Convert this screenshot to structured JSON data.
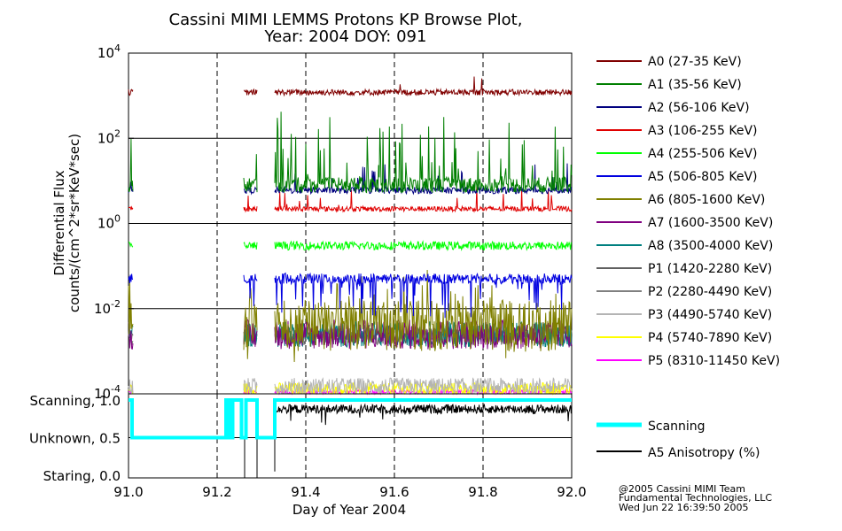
{
  "title": {
    "line1": "Cassini MIMI LEMMS Protons KP Browse Plot,",
    "line2": "Year: 2004 DOY: 091"
  },
  "colors": {
    "A0": "#800000",
    "A1": "#007f00",
    "A2": "#00007f",
    "A3": "#e00000",
    "A4": "#00ff00",
    "A5": "#0000e0",
    "A6": "#808000",
    "A7": "#800080",
    "A8": "#008080",
    "P1": "#606060",
    "P2": "#808080",
    "P3": "#b4b4b4",
    "P4": "#ffff00",
    "P5": "#ff00ff",
    "scanning": "#00ffff",
    "anisotropy": "#000000"
  },
  "chart_data": [
    {
      "type": "line",
      "panel": "flux",
      "ylabel_line1": "Differential Flux",
      "ylabel_line2": "counts/(cm^2*sr*KeV*sec)",
      "yscale": "log",
      "ylim": [
        0.0001,
        10000
      ],
      "xlim": [
        91.0,
        92.0
      ],
      "yticks": [
        {
          "base": "10",
          "exp": "4",
          "value": 10000
        },
        {
          "base": "10",
          "exp": "2",
          "value": 100
        },
        {
          "base": "10",
          "exp": "0",
          "value": 1
        },
        {
          "base": "10",
          "exp": "-2",
          "value": 0.01
        },
        {
          "base": "10",
          "exp": "-4",
          "value": 0.0001
        }
      ],
      "data_gaps": [
        [
          91.01,
          91.26
        ],
        [
          91.29,
          91.33
        ]
      ],
      "series": [
        {
          "name": "A0 (27-35 KeV)",
          "key": "A0",
          "typical": 1200,
          "spread": 0.07,
          "spike_prob": 0.02,
          "spike_max": 2.0
        },
        {
          "name": "A1 (35-56 KeV)",
          "key": "A1",
          "typical": 8,
          "spread": 0.18,
          "spike_prob": 0.13,
          "spike_max": 40
        },
        {
          "name": "A2 (56-106 KeV)",
          "key": "A2",
          "typical": 6,
          "spread": 0.08,
          "spike_prob": 0.05,
          "spike_max": 3
        },
        {
          "name": "A3 (106-255 KeV)",
          "key": "A3",
          "typical": 2.2,
          "spread": 0.06,
          "spike_prob": 0.03,
          "spike_max": 2
        },
        {
          "name": "A4 (255-506 KeV)",
          "key": "A4",
          "typical": 0.3,
          "spread": 0.1,
          "spike_prob": 0.0,
          "spike_max": 1
        },
        {
          "name": "A5 (506-805 KeV)",
          "key": "A5",
          "typical": 0.05,
          "spread": 0.12,
          "spike_prob": 0.12,
          "spike_max": 0.05
        },
        {
          "name": "A6 (805-1600 KeV)",
          "key": "A6",
          "typical": 0.004,
          "spread": 0.6,
          "spike_prob": 0.0,
          "spike_max": 1
        },
        {
          "name": "A7 (1600-3500 KeV)",
          "key": "A7",
          "typical": 0.0025,
          "spread": 0.35,
          "spike_prob": 0.0,
          "spike_max": 1
        },
        {
          "name": "A8 (3500-4000 KeV)",
          "key": "A8",
          "typical": 0.0025,
          "spread": 0.3,
          "spike_prob": 0.0,
          "spike_max": 1
        },
        {
          "name": "P1 (1420-2280 KeV)",
          "key": "P1",
          "typical": 0.0022,
          "spread": 0.2,
          "spike_prob": 0.0,
          "spike_max": 1
        },
        {
          "name": "P2 (2280-4490 KeV)",
          "key": "P2",
          "typical": 0.0025,
          "spread": 0.15,
          "spike_prob": 0.0,
          "spike_max": 1
        },
        {
          "name": "P3 (4490-5740 KeV)",
          "key": "P3",
          "typical": 0.00015,
          "spread": 0.2,
          "spike_prob": 0.0,
          "spike_max": 1
        },
        {
          "name": "P4 (5740-7890 KeV)",
          "key": "P4",
          "typical": 0.00013,
          "spread": 0.15,
          "spike_prob": 0.0,
          "spike_max": 1
        },
        {
          "name": "P5 (8310-11450 KeV)",
          "key": "P5",
          "typical": 0.00011,
          "spread": 0.05,
          "spike_prob": 0.0,
          "spike_max": 1
        }
      ]
    },
    {
      "type": "line",
      "panel": "status",
      "ylim": [
        0.0,
        1.0
      ],
      "yticks": [
        {
          "label": "Scanning, 1.0",
          "value": 1.0
        },
        {
          "label": "Unknown, 0.5",
          "value": 0.5
        },
        {
          "label": "Staring, 0.0",
          "value": 0.0
        }
      ],
      "xlabel": "Day of Year 2004",
      "xticks": [
        "91.0",
        "91.2",
        "91.4",
        "91.6",
        "91.8",
        "92.0"
      ],
      "xtick_values": [
        91.0,
        91.2,
        91.4,
        91.6,
        91.8,
        92.0
      ],
      "vlines": [
        91.2,
        91.4,
        91.6,
        91.8
      ],
      "series": [
        {
          "name": "Scanning",
          "key": "scanning",
          "x": [
            91.0,
            91.008,
            91.008,
            91.22,
            91.22,
            91.228,
            91.228,
            91.235,
            91.235,
            91.255,
            91.255,
            91.265,
            91.265,
            91.29,
            91.29,
            91.33,
            91.33,
            92.0
          ],
          "y": [
            1.0,
            1.0,
            0.5,
            0.5,
            1.0,
            1.0,
            0.5,
            0.5,
            1.0,
            1.0,
            0.5,
            0.5,
            1.0,
            1.0,
            0.5,
            0.5,
            1.0,
            1.0
          ]
        },
        {
          "name": "A5 Anisotropy (%)",
          "key": "anisotropy",
          "typical": 0.88,
          "noise": 0.06,
          "start": 91.33,
          "end": 92.0,
          "spikes_down": [
            {
              "x": 91.29,
              "to": -0.1
            },
            {
              "x": 91.33,
              "to": 0.05
            },
            {
              "x": 91.262,
              "to": -0.1
            }
          ]
        }
      ]
    }
  ],
  "legend": {
    "scanning": "Scanning",
    "anisotropy": "A5 Anisotropy (%)"
  },
  "footer": {
    "line1": "@2005 Cassini MIMI Team",
    "line2": "Fundamental Technologies, LLC",
    "line3": "Wed Jun 22 16:39:50 2005"
  }
}
